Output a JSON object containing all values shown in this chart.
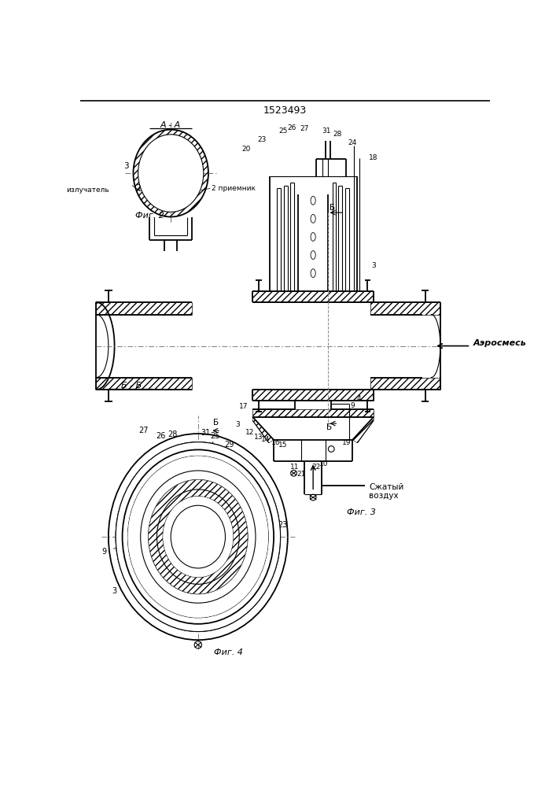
{
  "title": "1523493",
  "background_color": "#ffffff",
  "line_color": "#000000",
  "fig2_label": "A - A",
  "fig2_caption": "Фиг. 2",
  "fig3_caption": "Фиг. 3",
  "fig4_caption": "Фиг. 4",
  "section_b_label": "Б - Б",
  "aerosmes_label": "Аэросмесь",
  "szhatyj_label": "Сжатый\nвоздух",
  "izluchatel_label": "излучатель",
  "priemnik_label": "2 приемник"
}
